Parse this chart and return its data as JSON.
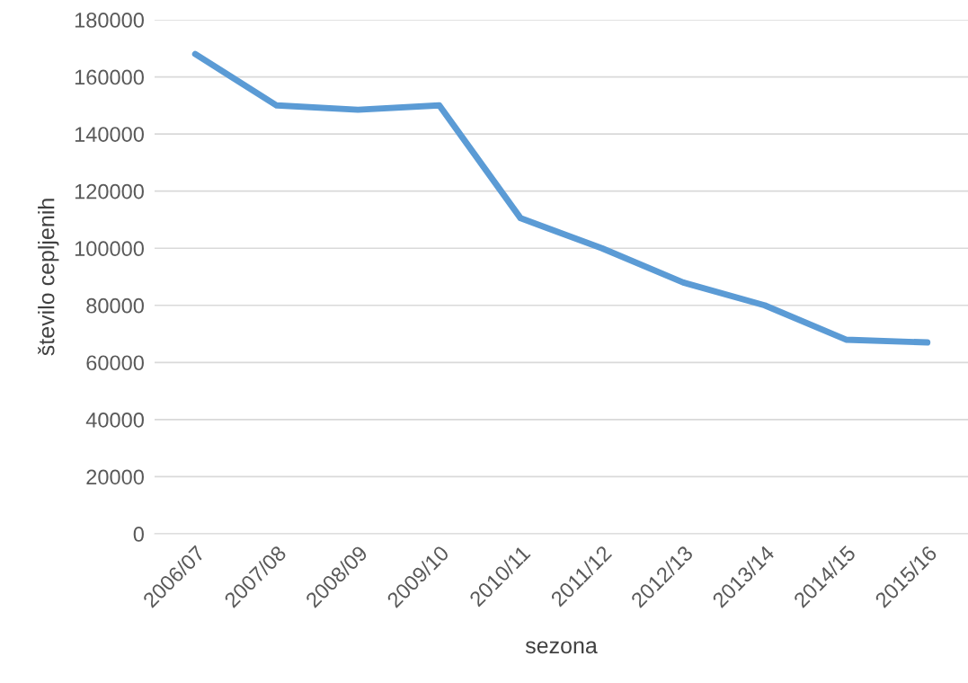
{
  "chart_data": {
    "type": "line",
    "xlabel": "sezona",
    "ylabel": "število cepljenih",
    "categories": [
      "2006/07",
      "2007/08",
      "2008/09",
      "2009/10",
      "2010/11",
      "2011/12",
      "2012/13",
      "2013/14",
      "2014/15",
      "2015/16"
    ],
    "series": [
      {
        "color": "#5b9bd5",
        "values": [
          168000,
          150000,
          148500,
          150000,
          110500,
          100000,
          88000,
          80000,
          68000,
          67000
        ]
      }
    ],
    "ylim": [
      0,
      180000
    ],
    "yticks": [
      0,
      20000,
      40000,
      60000,
      80000,
      100000,
      120000,
      140000,
      160000,
      180000
    ],
    "grid": "y",
    "legend": false,
    "marker": "none",
    "line_style": "solid"
  }
}
